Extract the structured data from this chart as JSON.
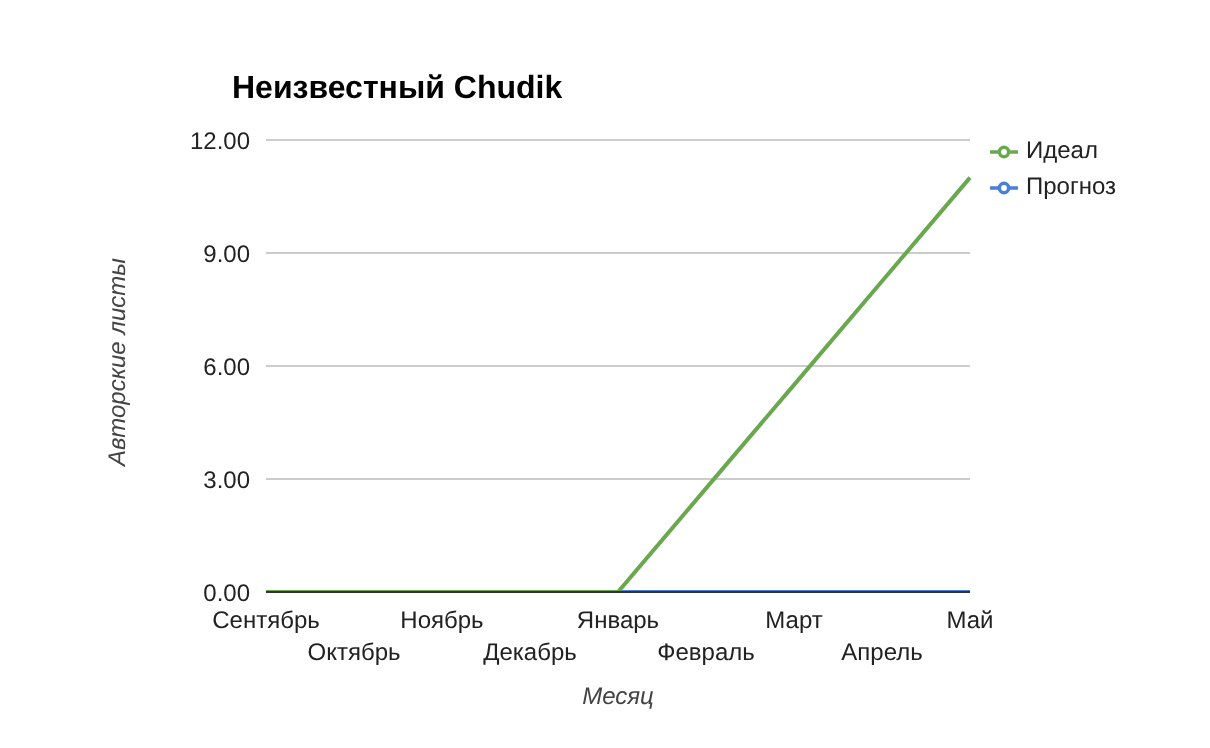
{
  "chart_data": {
    "type": "line",
    "title": "Неизвестный Chudik",
    "xlabel": "Месяц",
    "ylabel": "Авторские листы",
    "categories": [
      "Сентябрь",
      "Октябрь",
      "Ноябрь",
      "Декабрь",
      "Январь",
      "Февраль",
      "Март",
      "Апрель",
      "Май"
    ],
    "series": [
      {
        "name": "Прогноз",
        "color": "#4a7fd8",
        "values": [
          null,
          null,
          null,
          null,
          0,
          0,
          0,
          0,
          0
        ]
      },
      {
        "name": "Идеал",
        "color": "#6aa84f",
        "values": [
          0,
          0,
          0,
          0,
          0,
          2.75,
          5.5,
          8.25,
          11
        ]
      }
    ],
    "ylim": [
      0,
      12
    ],
    "yticks": [
      {
        "value": 0,
        "label": "0.00"
      },
      {
        "value": 3,
        "label": "3.00"
      },
      {
        "value": 6,
        "label": "6.00"
      },
      {
        "value": 9,
        "label": "9.00"
      },
      {
        "value": 12,
        "label": "12.00"
      }
    ],
    "grid": "y",
    "legend": "top right",
    "marker": "none",
    "line_style": "solid"
  }
}
